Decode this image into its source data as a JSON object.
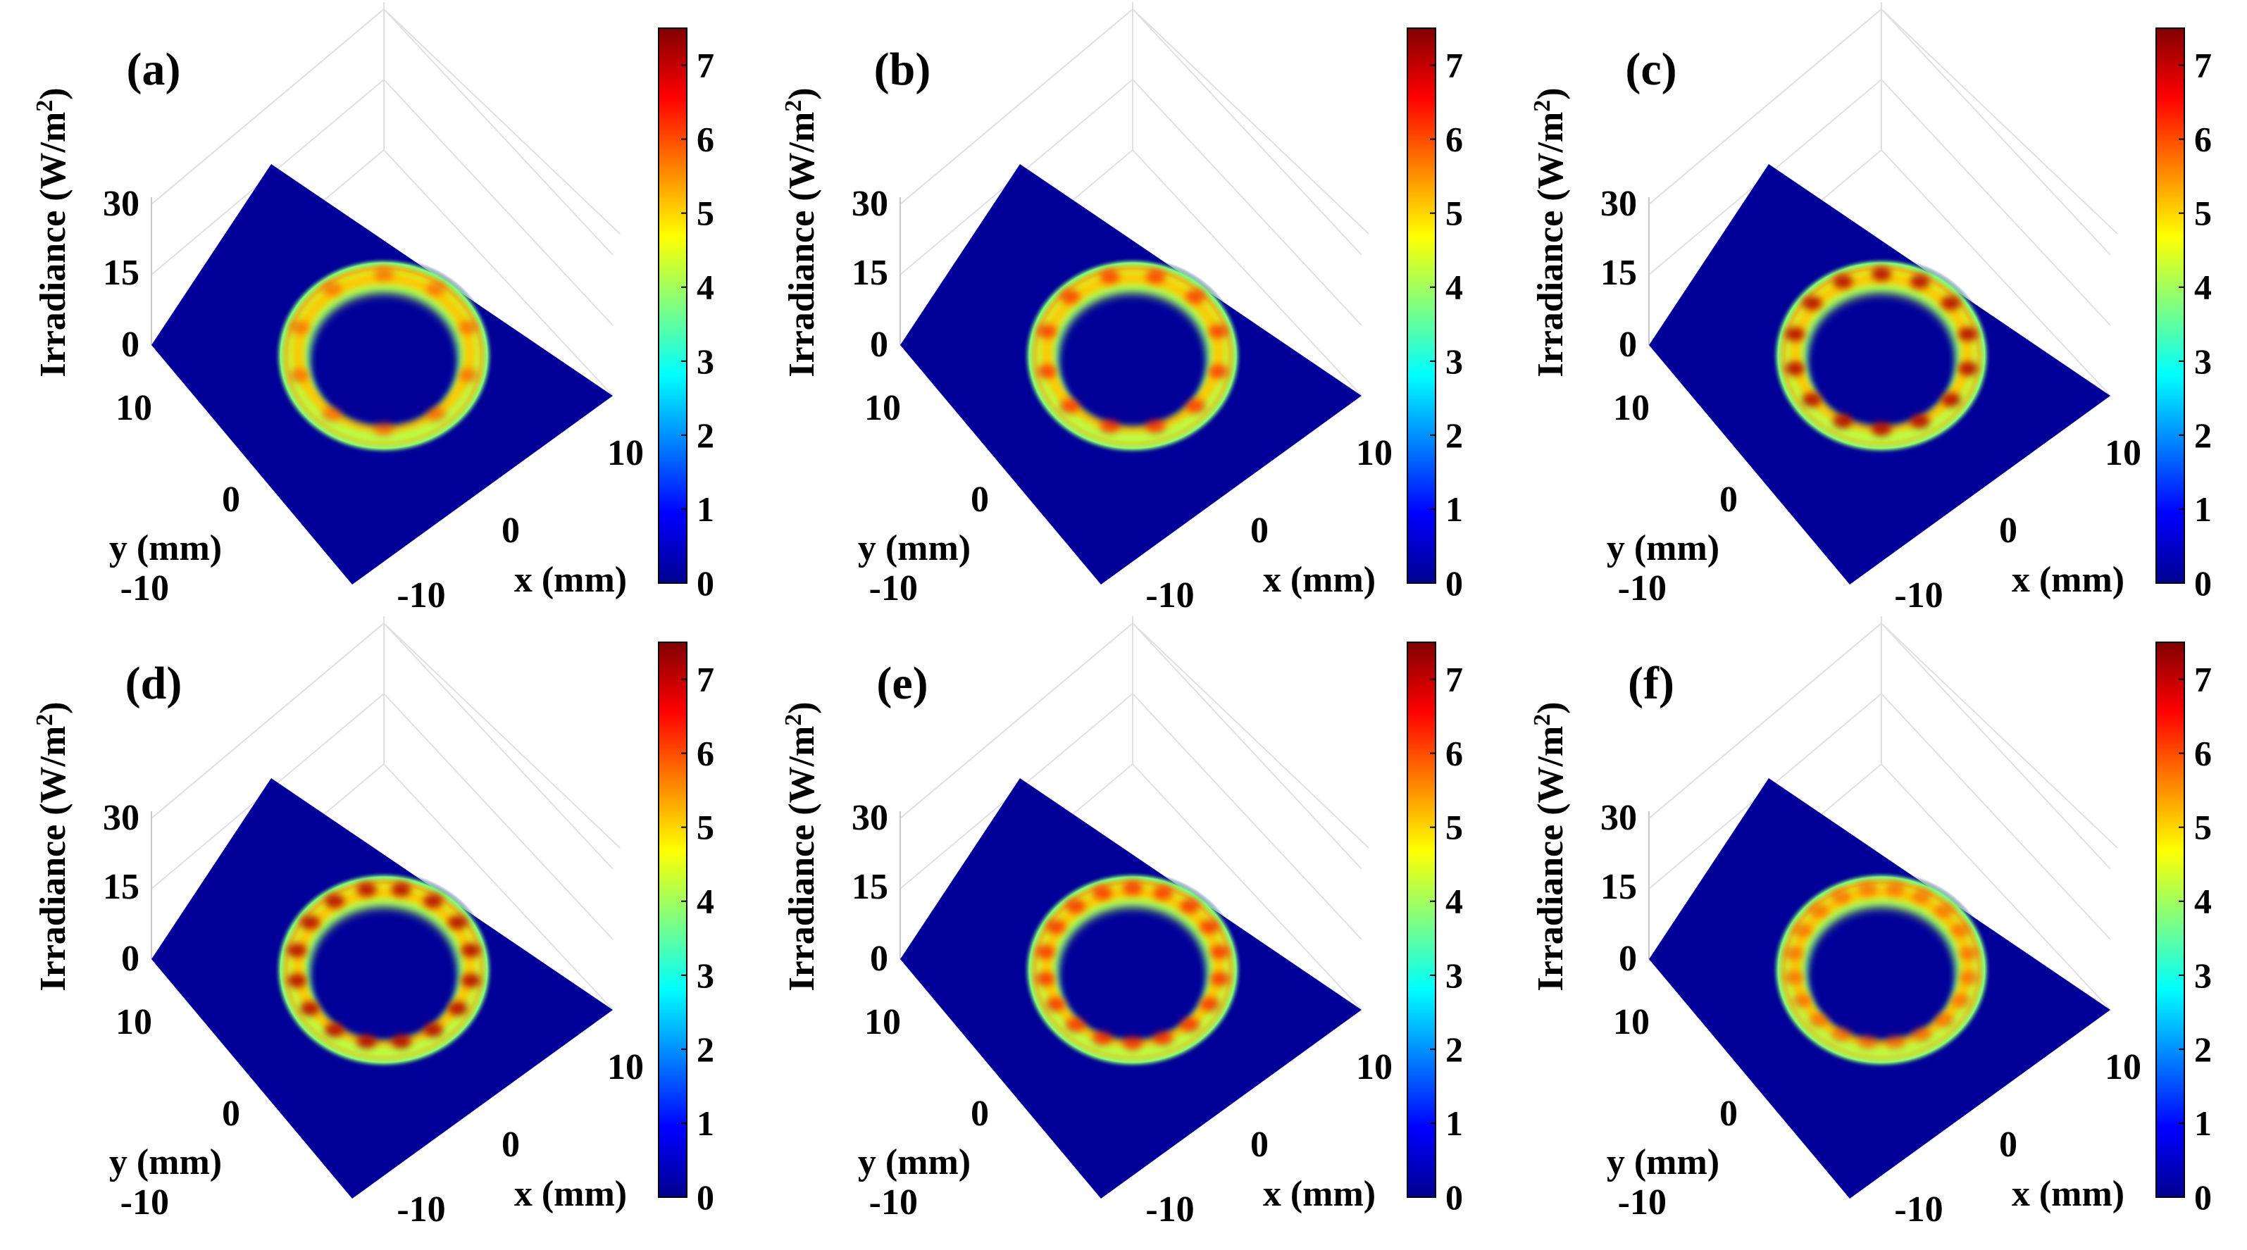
{
  "figure": {
    "colormap": [
      "#00008f",
      "#0000ff",
      "#0080ff",
      "#00ffff",
      "#80ff80",
      "#ffff00",
      "#ff8000",
      "#ff0000",
      "#800000"
    ],
    "background_color": "#000099",
    "panels": [
      {
        "label": "(a)",
        "peaks": 10,
        "ring_radius_mm": 7,
        "peak_contrast": 0.25
      },
      {
        "label": "(b)",
        "peaks": 12,
        "ring_radius_mm": 7,
        "peak_contrast": 0.45
      },
      {
        "label": "(c)",
        "peaks": 14,
        "ring_radius_mm": 7,
        "peak_contrast": 0.85
      },
      {
        "label": "(d)",
        "peaks": 16,
        "ring_radius_mm": 7,
        "peak_contrast": 0.85
      },
      {
        "label": "(e)",
        "peaks": 18,
        "ring_radius_mm": 7,
        "peak_contrast": 0.5
      },
      {
        "label": "(f)",
        "peaks": 20,
        "ring_radius_mm": 7,
        "peak_contrast": 0.25
      }
    ]
  },
  "chart_data": {
    "type": "heatmap",
    "title": "",
    "zlabel": "Irradiance (W/m",
    "zlabel_sup": "2",
    "zlabel_close": ")",
    "xlabel": "x (mm)",
    "ylabel": "y (mm)",
    "x_ticks": [
      "-10",
      "0",
      "10"
    ],
    "y_ticks": [
      "-10",
      "0",
      "10"
    ],
    "z_ticks": [
      "0",
      "15",
      "30"
    ],
    "zlim": [
      0,
      30
    ],
    "colorbar": {
      "range": [
        0,
        7.5
      ],
      "ticks": [
        "0",
        "1",
        "2",
        "3",
        "4",
        "5",
        "6",
        "7"
      ]
    }
  }
}
